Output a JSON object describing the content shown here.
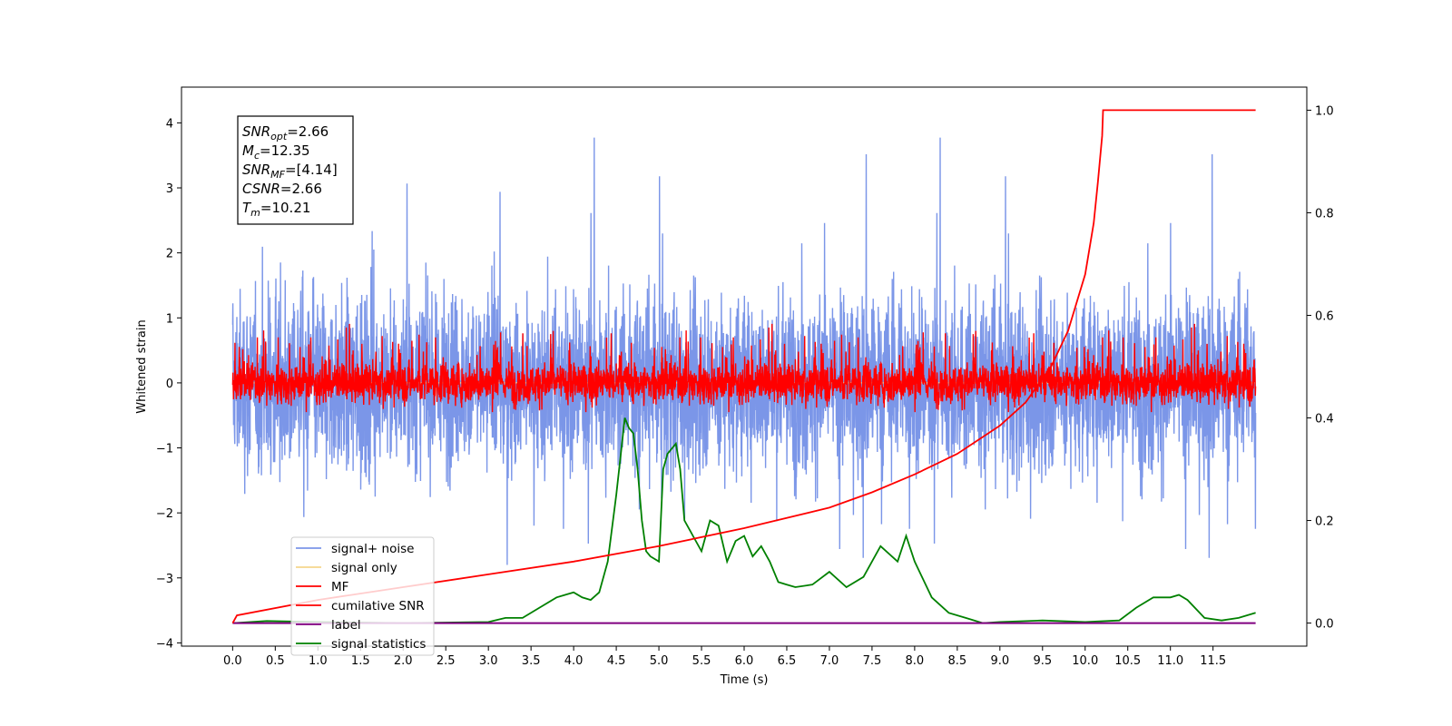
{
  "chart_data": {
    "type": "line",
    "title": "",
    "xlabel": "Time (s)",
    "ylabel": "Whitened strain",
    "ylabel_right": "",
    "xlim": [
      -0.6,
      12.6
    ],
    "ylim": [
      -4.05,
      4.55
    ],
    "ylim_right": [
      -0.045,
      1.045
    ],
    "x_ticks": [
      "0.0",
      "0.5",
      "1.0",
      "1.5",
      "2.0",
      "2.5",
      "3.0",
      "3.5",
      "4.0",
      "4.5",
      "5.0",
      "5.5",
      "6.0",
      "6.5",
      "7.0",
      "7.5",
      "8.0",
      "8.5",
      "9.0",
      "9.5",
      "10.0",
      "10.5",
      "11.0",
      "11.5"
    ],
    "y_ticks_left": [
      "4",
      "3",
      "2",
      "1",
      "0",
      "−1",
      "−2",
      "−3",
      "−4"
    ],
    "y_ticks_right": [
      "1.0",
      "0.8",
      "0.6",
      "0.4",
      "0.2",
      "0.0"
    ],
    "grid": false,
    "legend_position": "lower-left",
    "annotation": [
      {
        "symbol": "SNR",
        "sub": "opt",
        "value": "=2.66"
      },
      {
        "symbol": "M",
        "sub": "c",
        "value": "=12.35"
      },
      {
        "symbol": "SNR",
        "sub": "MF",
        "value": "=[4.14]"
      },
      {
        "symbol": "CSNR",
        "sub": "",
        "value": "=2.66"
      },
      {
        "symbol": "T",
        "sub": "m",
        "value": "=10.21"
      }
    ],
    "series": [
      {
        "name": "signal+ noise",
        "axis": "left",
        "color": "#7b96e8",
        "description_range": [
          -2.8,
          4.15
        ]
      },
      {
        "name": "signal only",
        "axis": "left",
        "color": "#f5d68c",
        "values_note": "flat near 0"
      },
      {
        "name": "MF",
        "axis": "left",
        "color": "#ff0000",
        "description_range": [
          -0.45,
          1.0
        ]
      },
      {
        "name": "cumilative SNR",
        "axis": "right",
        "color": "#ff0000",
        "x": [
          0.0,
          0.05,
          1.0,
          2.0,
          3.0,
          4.0,
          5.0,
          6.0,
          7.0,
          7.5,
          8.0,
          8.5,
          9.0,
          9.3,
          9.6,
          9.8,
          10.0,
          10.1,
          10.15,
          10.2,
          10.21,
          12.0
        ],
        "y": [
          0.0,
          0.015,
          0.045,
          0.07,
          0.095,
          0.12,
          0.15,
          0.185,
          0.225,
          0.255,
          0.29,
          0.33,
          0.385,
          0.43,
          0.5,
          0.57,
          0.68,
          0.78,
          0.86,
          0.95,
          1.0,
          1.0
        ]
      },
      {
        "name": "label",
        "axis": "right",
        "color": "#800080",
        "x": [
          0.0,
          12.0
        ],
        "y": [
          0.0,
          0.0
        ]
      },
      {
        "name": "signal statistics",
        "axis": "right",
        "color": "#008000",
        "x": [
          0.0,
          0.4,
          1.0,
          2.0,
          3.0,
          3.2,
          3.4,
          3.6,
          3.8,
          3.9,
          4.0,
          4.1,
          4.2,
          4.3,
          4.4,
          4.5,
          4.6,
          4.65,
          4.7,
          4.75,
          4.8,
          4.85,
          4.9,
          5.0,
          5.05,
          5.1,
          5.15,
          5.2,
          5.25,
          5.3,
          5.4,
          5.5,
          5.6,
          5.7,
          5.8,
          5.9,
          6.0,
          6.1,
          6.2,
          6.3,
          6.4,
          6.5,
          6.6,
          6.8,
          7.0,
          7.2,
          7.4,
          7.6,
          7.8,
          7.9,
          8.0,
          8.2,
          8.4,
          8.6,
          8.8,
          9.0,
          9.5,
          10.0,
          10.4,
          10.6,
          10.8,
          11.0,
          11.1,
          11.2,
          11.4,
          11.6,
          11.8,
          12.0
        ],
        "y": [
          0.0,
          0.004,
          0.002,
          0.0,
          0.002,
          0.01,
          0.01,
          0.03,
          0.05,
          0.055,
          0.06,
          0.05,
          0.045,
          0.06,
          0.12,
          0.25,
          0.4,
          0.38,
          0.37,
          0.3,
          0.2,
          0.14,
          0.13,
          0.12,
          0.3,
          0.33,
          0.34,
          0.35,
          0.3,
          0.2,
          0.17,
          0.14,
          0.2,
          0.19,
          0.12,
          0.16,
          0.17,
          0.13,
          0.15,
          0.12,
          0.08,
          0.075,
          0.07,
          0.075,
          0.1,
          0.07,
          0.09,
          0.15,
          0.12,
          0.17,
          0.12,
          0.05,
          0.02,
          0.01,
          0.0,
          0.002,
          0.005,
          0.002,
          0.005,
          0.03,
          0.05,
          0.05,
          0.055,
          0.045,
          0.01,
          0.005,
          0.01,
          0.02
        ]
      }
    ]
  }
}
